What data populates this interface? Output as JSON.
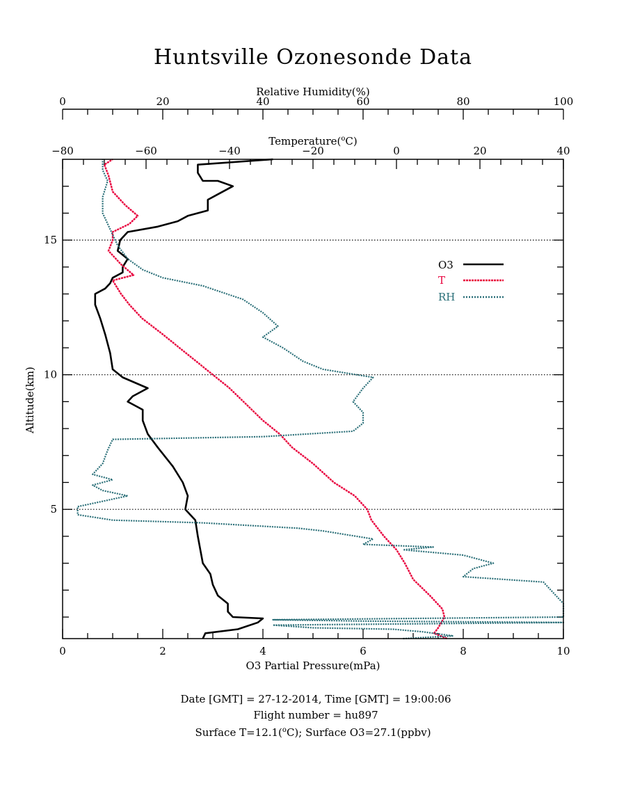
{
  "title": "Huntsville Ozonesonde Data",
  "footer": {
    "line1": "Date [GMT] = 27-12-2014,  Time [GMT] = 19:00:06",
    "line2": "Flight number = hu897",
    "line3_a": "Surface T=12.1(",
    "line3_b": "C); Surface O3=27.1(ppbv)"
  },
  "colors": {
    "o3": "#000000",
    "temperature": "#e8003c",
    "rh": "#2a6f78",
    "frame": "#000000"
  },
  "chart_data": {
    "type": "line",
    "title": "Huntsville Ozonesonde Data",
    "y_axis": {
      "label": "Altitude(km)",
      "range": [
        0.2,
        18
      ],
      "ticks": [
        5,
        10,
        15
      ],
      "tick_labels": [
        "5",
        "10",
        "15"
      ],
      "reference_lines_dotted": [
        5,
        10,
        15
      ]
    },
    "x_axes": {
      "o3": {
        "label": "O3 Partial Pressure(mPa)",
        "range": [
          0,
          10
        ],
        "ticks": [
          0,
          2,
          4,
          6,
          8,
          10
        ],
        "tick_labels": [
          "0",
          "2",
          "4",
          "6",
          "8",
          "10"
        ],
        "position": "bottom"
      },
      "temperature": {
        "label_a": "Temperature(",
        "label_b": "C)",
        "range": [
          -80,
          40
        ],
        "ticks": [
          -80,
          -60,
          -40,
          -20,
          0,
          20,
          40
        ],
        "tick_labels": [
          "−80",
          "−60",
          "−40",
          "−20",
          "0",
          "20",
          "40"
        ],
        "position": "top"
      },
      "rh": {
        "label": "Relative Humidity(%)",
        "range": [
          0,
          100
        ],
        "ticks": [
          0,
          20,
          40,
          60,
          80,
          100
        ],
        "tick_labels": [
          "0",
          "20",
          "40",
          "60",
          "80",
          "100"
        ],
        "position": "top-upper"
      }
    },
    "legend": {
      "placement": "right, near 14 km",
      "entries": [
        {
          "key": "o3",
          "label": "O3",
          "style": "solid"
        },
        {
          "key": "temperature",
          "label": "T",
          "style": "dotted"
        },
        {
          "key": "rh",
          "label": "RH",
          "style": "dotted"
        }
      ]
    },
    "series": [
      {
        "name": "O3",
        "axis": "o3",
        "points": [
          [
            2.8,
            0.2
          ],
          [
            2.85,
            0.4
          ],
          [
            3.5,
            0.55
          ],
          [
            3.9,
            0.8
          ],
          [
            4.0,
            0.95
          ],
          [
            3.4,
            1.0
          ],
          [
            3.3,
            1.2
          ],
          [
            3.3,
            1.5
          ],
          [
            3.1,
            1.8
          ],
          [
            3.0,
            2.2
          ],
          [
            2.95,
            2.6
          ],
          [
            2.8,
            3.0
          ],
          [
            2.75,
            3.5
          ],
          [
            2.7,
            4.0
          ],
          [
            2.65,
            4.6
          ],
          [
            2.45,
            5.0
          ],
          [
            2.5,
            5.5
          ],
          [
            2.4,
            6.0
          ],
          [
            2.2,
            6.6
          ],
          [
            1.9,
            7.3
          ],
          [
            1.7,
            7.8
          ],
          [
            1.6,
            8.3
          ],
          [
            1.6,
            8.7
          ],
          [
            1.3,
            9.0
          ],
          [
            1.4,
            9.2
          ],
          [
            1.7,
            9.5
          ],
          [
            1.2,
            9.9
          ],
          [
            1.0,
            10.2
          ],
          [
            0.95,
            10.8
          ],
          [
            0.85,
            11.5
          ],
          [
            0.75,
            12.1
          ],
          [
            0.65,
            12.6
          ],
          [
            0.65,
            13.0
          ],
          [
            0.85,
            13.2
          ],
          [
            0.95,
            13.4
          ],
          [
            1.0,
            13.6
          ],
          [
            1.2,
            13.8
          ],
          [
            1.2,
            14.0
          ],
          [
            1.3,
            14.3
          ],
          [
            1.1,
            14.6
          ],
          [
            1.15,
            15.0
          ],
          [
            1.3,
            15.3
          ],
          [
            1.9,
            15.5
          ],
          [
            2.3,
            15.7
          ],
          [
            2.5,
            15.9
          ],
          [
            2.9,
            16.1
          ],
          [
            2.9,
            16.5
          ],
          [
            3.1,
            16.7
          ],
          [
            3.4,
            17.0
          ],
          [
            3.1,
            17.2
          ],
          [
            2.8,
            17.2
          ],
          [
            2.7,
            17.5
          ],
          [
            2.7,
            17.8
          ],
          [
            4.2,
            18.0
          ]
        ]
      },
      {
        "name": "T",
        "axis": "temperature",
        "points": [
          [
            12.1,
            0.2
          ],
          [
            9.0,
            0.4
          ],
          [
            10.0,
            0.6
          ],
          [
            11.5,
            1.0
          ],
          [
            11.0,
            1.3
          ],
          [
            8.0,
            1.8
          ],
          [
            4.0,
            2.4
          ],
          [
            2.0,
            3.0
          ],
          [
            0.0,
            3.5
          ],
          [
            -3.0,
            4.0
          ],
          [
            -6.0,
            4.6
          ],
          [
            -7.0,
            5.0
          ],
          [
            -10.0,
            5.5
          ],
          [
            -15.0,
            6.0
          ],
          [
            -20.0,
            6.7
          ],
          [
            -25.0,
            7.3
          ],
          [
            -28.0,
            7.8
          ],
          [
            -32.0,
            8.3
          ],
          [
            -36.0,
            8.9
          ],
          [
            -40.0,
            9.5
          ],
          [
            -44.0,
            10.0
          ],
          [
            -48.0,
            10.5
          ],
          [
            -52.0,
            11.0
          ],
          [
            -56.0,
            11.5
          ],
          [
            -61.0,
            12.1
          ],
          [
            -64.0,
            12.6
          ],
          [
            -66.0,
            13.0
          ],
          [
            -68.0,
            13.5
          ],
          [
            -63.0,
            13.7
          ],
          [
            -66.0,
            14.1
          ],
          [
            -69.0,
            14.6
          ],
          [
            -68.0,
            15.0
          ],
          [
            -68.0,
            15.3
          ],
          [
            -64.0,
            15.6
          ],
          [
            -62.0,
            15.9
          ],
          [
            -65.0,
            16.3
          ],
          [
            -68.0,
            16.8
          ],
          [
            -69.0,
            17.4
          ],
          [
            -70.0,
            17.8
          ],
          [
            -68.0,
            18.0
          ]
        ]
      },
      {
        "name": "RH",
        "axis": "rh",
        "points": [
          [
            68.0,
            0.2
          ],
          [
            78.0,
            0.3
          ],
          [
            72.0,
            0.45
          ],
          [
            66.0,
            0.55
          ],
          [
            50.0,
            0.6
          ],
          [
            42.0,
            0.7
          ],
          [
            100.0,
            0.8
          ],
          [
            60.0,
            0.85
          ],
          [
            42.0,
            0.9
          ],
          [
            100.0,
            1.0
          ],
          [
            100.0,
            1.5
          ],
          [
            98.0,
            1.9
          ],
          [
            96.0,
            2.3
          ],
          [
            80.0,
            2.5
          ],
          [
            82.0,
            2.8
          ],
          [
            86.0,
            3.0
          ],
          [
            80.0,
            3.3
          ],
          [
            68.0,
            3.5
          ],
          [
            74.0,
            3.6
          ],
          [
            60.0,
            3.7
          ],
          [
            62.0,
            3.9
          ],
          [
            52.0,
            4.2
          ],
          [
            47.0,
            4.3
          ],
          [
            28.0,
            4.5
          ],
          [
            10.0,
            4.6
          ],
          [
            3.0,
            4.8
          ],
          [
            3.0,
            5.1
          ],
          [
            8.0,
            5.3
          ],
          [
            13.0,
            5.5
          ],
          [
            8.0,
            5.7
          ],
          [
            6.0,
            5.9
          ],
          [
            10.0,
            6.1
          ],
          [
            6.0,
            6.3
          ],
          [
            8.0,
            6.7
          ],
          [
            9.0,
            7.2
          ],
          [
            10.0,
            7.6
          ],
          [
            40.0,
            7.7
          ],
          [
            58.0,
            7.9
          ],
          [
            60.0,
            8.2
          ],
          [
            60.0,
            8.6
          ],
          [
            58.0,
            9.0
          ],
          [
            60.0,
            9.5
          ],
          [
            62.0,
            9.9
          ],
          [
            52.0,
            10.2
          ],
          [
            48.0,
            10.5
          ],
          [
            44.0,
            11.0
          ],
          [
            40.0,
            11.4
          ],
          [
            43.0,
            11.8
          ],
          [
            40.0,
            12.3
          ],
          [
            36.0,
            12.8
          ],
          [
            28.0,
            13.3
          ],
          [
            20.0,
            13.6
          ],
          [
            16.0,
            13.9
          ],
          [
            13.0,
            14.3
          ],
          [
            11.0,
            14.8
          ],
          [
            10.0,
            15.2
          ],
          [
            9.0,
            15.6
          ],
          [
            8.0,
            16.0
          ],
          [
            8.0,
            16.6
          ],
          [
            9.0,
            17.2
          ],
          [
            8.0,
            17.6
          ],
          [
            8.0,
            18.0
          ]
        ]
      }
    ]
  }
}
